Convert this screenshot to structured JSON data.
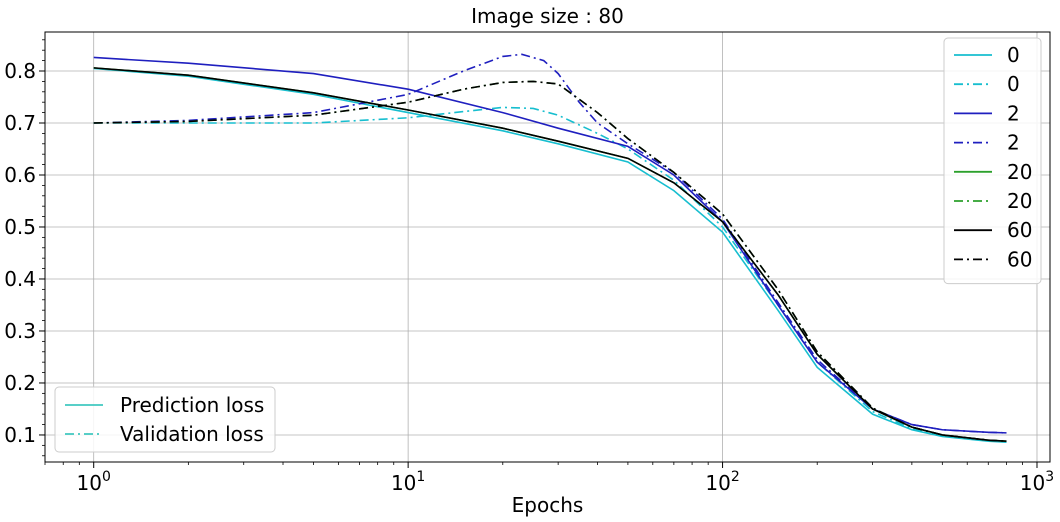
{
  "chart_data": {
    "type": "line",
    "title": "Image size : 80",
    "xlabel": "Epochs",
    "ylabel": "",
    "xscale": "log",
    "xlim": [
      0.7,
      1100
    ],
    "ylim": [
      0.048,
      0.875
    ],
    "xticks": [
      {
        "value": 1,
        "base": "10",
        "exp": "0"
      },
      {
        "value": 10,
        "base": "10",
        "exp": "1"
      },
      {
        "value": 100,
        "base": "10",
        "exp": "2"
      },
      {
        "value": 1000,
        "base": "10",
        "exp": "3"
      }
    ],
    "yticks": [
      {
        "value": 0.1,
        "label": "0.1"
      },
      {
        "value": 0.2,
        "label": "0.2"
      },
      {
        "value": 0.3,
        "label": "0.3"
      },
      {
        "value": 0.4,
        "label": "0.4"
      },
      {
        "value": 0.5,
        "label": "0.5"
      },
      {
        "value": 0.6,
        "label": "0.6"
      },
      {
        "value": 0.7,
        "label": "0.7"
      },
      {
        "value": 0.8,
        "label": "0.8"
      }
    ],
    "grid": true,
    "legend_placement": "top-right",
    "style_legend_placement": "bottom-left",
    "style_legend": [
      {
        "label": "Prediction loss",
        "dash": "solid",
        "color": "#40c8c0"
      },
      {
        "label": "Validation loss",
        "dash": "dashdot",
        "color": "#40c8c0"
      }
    ],
    "series": [
      {
        "name": "0",
        "color": "#17becf",
        "dash": "solid",
        "x": [
          1,
          2,
          5,
          10,
          20,
          30,
          50,
          70,
          100,
          150,
          200,
          300,
          400,
          500,
          700,
          800
        ],
        "y": [
          0.805,
          0.79,
          0.755,
          0.72,
          0.685,
          0.66,
          0.625,
          0.57,
          0.49,
          0.34,
          0.23,
          0.14,
          0.11,
          0.097,
          0.088,
          0.086
        ]
      },
      {
        "name": "0",
        "color": "#17becf",
        "dash": "dashdot",
        "x": [
          1,
          2,
          5,
          10,
          15,
          20,
          25,
          30,
          40,
          50,
          70,
          100,
          150,
          200,
          300,
          400,
          500,
          700,
          800
        ],
        "y": [
          0.7,
          0.7,
          0.7,
          0.71,
          0.722,
          0.73,
          0.728,
          0.715,
          0.68,
          0.65,
          0.59,
          0.5,
          0.35,
          0.24,
          0.145,
          0.112,
          0.098,
          0.089,
          0.087
        ]
      },
      {
        "name": "2",
        "color": "#1f1fbf",
        "dash": "solid",
        "x": [
          1,
          2,
          5,
          10,
          20,
          30,
          50,
          70,
          100,
          150,
          200,
          300,
          400,
          500,
          700,
          800
        ],
        "y": [
          0.826,
          0.815,
          0.795,
          0.765,
          0.72,
          0.69,
          0.655,
          0.6,
          0.51,
          0.35,
          0.24,
          0.15,
          0.12,
          0.11,
          0.105,
          0.104
        ]
      },
      {
        "name": "2",
        "color": "#1f1fbf",
        "dash": "dashdot",
        "x": [
          1,
          2,
          5,
          10,
          15,
          20,
          23,
          27,
          30,
          35,
          40,
          50,
          70,
          100,
          150,
          200,
          300,
          400,
          500,
          700,
          800
        ],
        "y": [
          0.7,
          0.705,
          0.72,
          0.755,
          0.8,
          0.828,
          0.832,
          0.82,
          0.795,
          0.74,
          0.7,
          0.66,
          0.605,
          0.515,
          0.355,
          0.245,
          0.15,
          0.12,
          0.11,
          0.105,
          0.104
        ]
      },
      {
        "name": "20",
        "color": "#2ca02c",
        "dash": "solid",
        "x": [
          1,
          2,
          5,
          10,
          20,
          30,
          50,
          70,
          100,
          150,
          200,
          300,
          400,
          500,
          700,
          800
        ],
        "y": [
          0.806,
          0.792,
          0.758,
          0.725,
          0.69,
          0.665,
          0.632,
          0.585,
          0.51,
          0.37,
          0.255,
          0.15,
          0.115,
          0.1,
          0.09,
          0.088
        ]
      },
      {
        "name": "20",
        "color": "#2ca02c",
        "dash": "dashdot",
        "x": [
          1,
          2,
          5,
          10,
          15,
          20,
          25,
          30,
          40,
          50,
          70,
          100,
          150,
          200,
          300,
          400,
          500,
          700,
          800
        ],
        "y": [
          0.7,
          0.703,
          0.715,
          0.74,
          0.765,
          0.778,
          0.78,
          0.775,
          0.72,
          0.67,
          0.605,
          0.525,
          0.38,
          0.26,
          0.152,
          0.115,
          0.1,
          0.09,
          0.088
        ]
      },
      {
        "name": "60",
        "color": "#000000",
        "dash": "solid",
        "x": [
          1,
          2,
          5,
          10,
          20,
          30,
          50,
          70,
          100,
          150,
          200,
          300,
          400,
          500,
          700,
          800
        ],
        "y": [
          0.806,
          0.792,
          0.758,
          0.725,
          0.69,
          0.665,
          0.632,
          0.585,
          0.51,
          0.37,
          0.255,
          0.15,
          0.115,
          0.1,
          0.09,
          0.088
        ]
      },
      {
        "name": "60",
        "color": "#000000",
        "dash": "dashdot",
        "x": [
          1,
          2,
          5,
          10,
          15,
          20,
          25,
          30,
          40,
          50,
          70,
          100,
          150,
          200,
          300,
          400,
          500,
          700,
          800
        ],
        "y": [
          0.7,
          0.703,
          0.715,
          0.74,
          0.765,
          0.778,
          0.78,
          0.775,
          0.72,
          0.67,
          0.605,
          0.525,
          0.38,
          0.26,
          0.152,
          0.115,
          0.1,
          0.09,
          0.088
        ]
      }
    ]
  }
}
